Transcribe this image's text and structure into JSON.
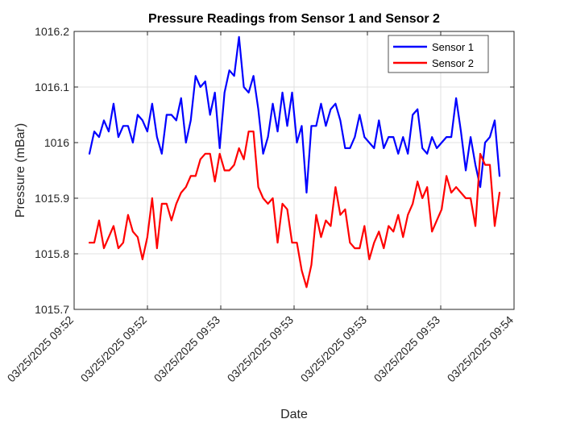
{
  "chart_data": {
    "type": "line",
    "title": "Pressure Readings from Sensor 1 and Sensor 2",
    "xlabel": "Date",
    "ylabel": "Pressure (mBar)",
    "ylim": [
      1015.7,
      1016.2
    ],
    "yticks": [
      1015.7,
      1015.8,
      1015.9,
      1016,
      1016.1,
      1016.2
    ],
    "ytick_labels": [
      "1015.7",
      "1015.8",
      "1015.9",
      "1016",
      "1016.1",
      "1016.2"
    ],
    "xtick_labels": [
      "03/25/2025 09:52",
      "03/25/2025 09:52",
      "03/25/2025 09:53",
      "03/25/2025 09:53",
      "03/25/2025 09:53",
      "03/25/2025 09:53",
      "03/25/2025 09:54"
    ],
    "grid": true,
    "legend_position": "top-right",
    "series": [
      {
        "name": "Sensor 1",
        "color": "#0000ff",
        "values": [
          1015.98,
          1016.02,
          1016.01,
          1016.04,
          1016.02,
          1016.07,
          1016.01,
          1016.03,
          1016.03,
          1016.0,
          1016.05,
          1016.04,
          1016.02,
          1016.07,
          1016.01,
          1015.98,
          1016.05,
          1016.05,
          1016.04,
          1016.08,
          1016.0,
          1016.04,
          1016.12,
          1016.1,
          1016.11,
          1016.05,
          1016.09,
          1015.99,
          1016.09,
          1016.13,
          1016.12,
          1016.19,
          1016.1,
          1016.09,
          1016.12,
          1016.06,
          1015.98,
          1016.01,
          1016.07,
          1016.02,
          1016.09,
          1016.03,
          1016.09,
          1016.0,
          1016.03,
          1015.91,
          1016.03,
          1016.03,
          1016.07,
          1016.03,
          1016.06,
          1016.07,
          1016.04,
          1015.99,
          1015.99,
          1016.01,
          1016.05,
          1016.01,
          1016.0,
          1015.99,
          1016.04,
          1015.99,
          1016.01,
          1016.01,
          1015.98,
          1016.01,
          1015.98,
          1016.05,
          1016.06,
          1015.99,
          1015.98,
          1016.01,
          1015.99,
          1016.0,
          1016.01,
          1016.01,
          1016.08,
          1016.02,
          1015.95,
          1016.01,
          1015.96,
          1015.92,
          1016.0,
          1016.01,
          1016.04,
          1015.94
        ]
      },
      {
        "name": "Sensor 2",
        "color": "#ff0000",
        "values": [
          1015.82,
          1015.82,
          1015.86,
          1015.81,
          1015.83,
          1015.85,
          1015.81,
          1015.82,
          1015.87,
          1015.84,
          1015.83,
          1015.79,
          1015.83,
          1015.9,
          1015.81,
          1015.89,
          1015.89,
          1015.86,
          1015.89,
          1015.91,
          1015.92,
          1015.94,
          1015.94,
          1015.97,
          1015.98,
          1015.98,
          1015.93,
          1015.98,
          1015.95,
          1015.95,
          1015.96,
          1015.99,
          1015.97,
          1016.02,
          1016.02,
          1015.92,
          1015.9,
          1015.89,
          1015.9,
          1015.82,
          1015.89,
          1015.88,
          1015.82,
          1015.82,
          1015.77,
          1015.74,
          1015.78,
          1015.87,
          1015.83,
          1015.86,
          1015.85,
          1015.92,
          1015.87,
          1015.88,
          1015.82,
          1015.81,
          1015.81,
          1015.85,
          1015.79,
          1015.82,
          1015.84,
          1015.81,
          1015.85,
          1015.84,
          1015.87,
          1015.83,
          1015.87,
          1015.89,
          1015.93,
          1015.9,
          1015.92,
          1015.84,
          1015.86,
          1015.88,
          1015.94,
          1015.91,
          1015.92,
          1015.91,
          1015.9,
          1015.9,
          1015.85,
          1015.98,
          1015.96,
          1015.96,
          1015.85,
          1015.91
        ]
      }
    ]
  }
}
